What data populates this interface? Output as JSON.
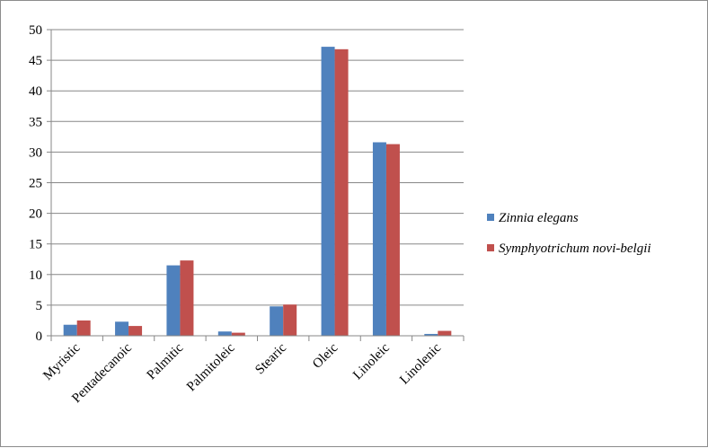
{
  "chart_data": {
    "type": "bar",
    "categories": [
      "Myristic",
      "Pentadecanoic",
      "Palmitic",
      "Palmitoleic",
      "Stearic",
      "Oleic",
      "Linoleic",
      "Linolenic"
    ],
    "series": [
      {
        "name": "Zinnia elegans",
        "color": "#4f81bd",
        "values": [
          1.8,
          2.3,
          11.5,
          0.7,
          4.8,
          47.2,
          31.6,
          0.3
        ]
      },
      {
        "name": "Symphyotrichum novi-belgii",
        "color": "#c0504d",
        "values": [
          2.5,
          1.6,
          12.3,
          0.5,
          5.1,
          46.8,
          31.3,
          0.8
        ]
      }
    ],
    "ylim": [
      0,
      50
    ],
    "yticks": [
      0,
      5,
      10,
      15,
      20,
      25,
      30,
      35,
      40,
      45,
      50
    ],
    "grid": true,
    "legend_position": "right",
    "title": "",
    "xlabel": "",
    "ylabel": ""
  }
}
